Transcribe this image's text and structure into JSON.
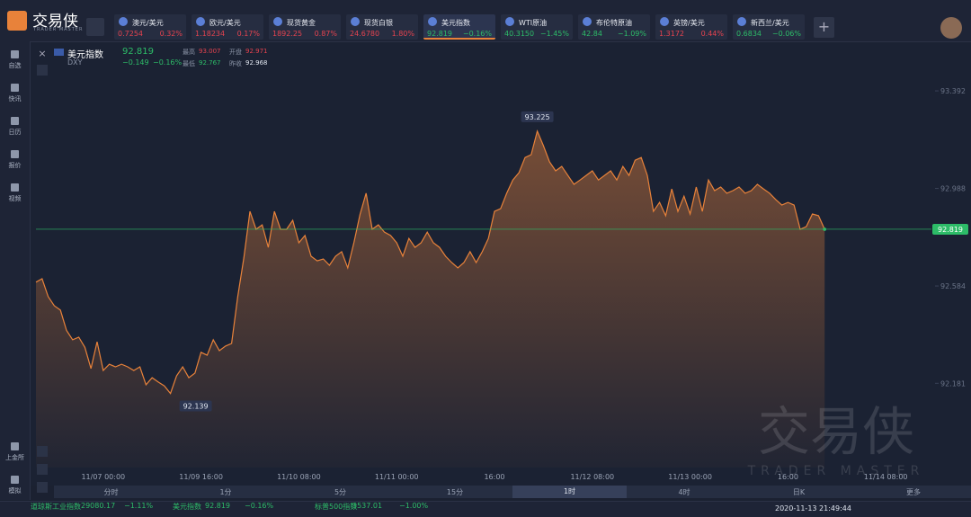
{
  "app": {
    "logo": "交易侠",
    "logo_sub": "TRADER MASTER",
    "watermark": "交易侠",
    "watermark_sub": "TRADER MASTER"
  },
  "tickers": [
    {
      "name": "澳元/美元",
      "price": "0.7254",
      "change": "0.32%"
    },
    {
      "name": "欧元/美元",
      "price": "1.18234",
      "change": "0.17%"
    },
    {
      "name": "现货黄金",
      "price": "1892.25",
      "change": "0.87%"
    },
    {
      "name": "现货白银",
      "price": "24.6780",
      "change": "1.80%"
    },
    {
      "name": "美元指数",
      "price": "92.819",
      "change": "−0.16%"
    },
    {
      "name": "WTI原油",
      "price": "40.3150",
      "change": "−1.45%"
    },
    {
      "name": "布伦特原油",
      "price": "42.84",
      "change": "−1.09%"
    },
    {
      "name": "英镑/美元",
      "price": "1.3172",
      "change": "0.44%"
    },
    {
      "name": "新西兰/美元",
      "price": "0.6834",
      "change": "−0.06%"
    }
  ],
  "sidebar": {
    "top": [
      "自选",
      "快讯",
      "日历",
      "报价",
      "视频"
    ],
    "bottom": [
      "上金所",
      "模拟"
    ]
  },
  "quote": {
    "name": "美元指数",
    "price": "92.819",
    "code": "DXY",
    "change": "−0.149",
    "change_pct": "−0.16%",
    "fields": [
      {
        "label": "最高",
        "value": "93.007"
      },
      {
        "label": "开盘",
        "value": "92.971"
      },
      {
        "label": "最低",
        "value": "92.767"
      },
      {
        "label": "昨收",
        "value": "92.968"
      }
    ]
  },
  "chart_data": {
    "type": "area",
    "color": "#e8823a",
    "last_color": "#2dbc68",
    "categories": [
      null,
      null,
      null,
      null,
      null,
      null,
      null,
      null,
      null,
      null,
      null,
      "11/07 00:00",
      null,
      null,
      null,
      null,
      null,
      null,
      null,
      null,
      null,
      null,
      null,
      null,
      null,
      null,
      null,
      "11/09 16:00",
      null,
      null,
      null,
      null,
      null,
      null,
      null,
      null,
      null,
      null,
      null,
      null,
      null,
      null,
      null,
      "11/10 08:00",
      null,
      null,
      null,
      null,
      null,
      null,
      null,
      null,
      null,
      null,
      null,
      null,
      null,
      null,
      null,
      "11/11 00:00",
      null,
      null,
      null,
      null,
      null,
      null,
      null,
      null,
      null,
      null,
      null,
      null,
      null,
      null,
      null,
      "16:00",
      null,
      null,
      null,
      null,
      null,
      null,
      null,
      null,
      null,
      null,
      null,
      null,
      null,
      null,
      null,
      "11/12 08:00",
      null,
      null,
      null,
      null,
      null,
      null,
      null,
      null,
      null,
      null,
      null,
      null,
      null,
      null,
      null,
      "11/13 00:00",
      null,
      null,
      null,
      null,
      null,
      null,
      null,
      null,
      null,
      null,
      null,
      null,
      null,
      null,
      null,
      "16:00",
      null,
      null,
      null,
      null,
      null,
      null,
      null,
      null,
      null,
      null,
      null,
      null,
      null,
      null,
      null,
      "11/14 08:00"
    ],
    "values": [
      92.6,
      92.614,
      92.54,
      92.502,
      92.484,
      92.4,
      92.361,
      92.372,
      92.33,
      92.242,
      92.353,
      92.234,
      92.26,
      92.249,
      92.26,
      92.249,
      92.234,
      92.249,
      92.175,
      92.204,
      92.186,
      92.17,
      92.139,
      92.212,
      92.249,
      92.204,
      92.223,
      92.309,
      92.297,
      92.361,
      92.316,
      92.335,
      92.346,
      92.539,
      92.7,
      92.893,
      92.819,
      92.837,
      92.744,
      92.893,
      92.819,
      92.819,
      92.856,
      92.763,
      92.793,
      92.707,
      92.688,
      92.696,
      92.67,
      92.707,
      92.726,
      92.659,
      92.763,
      92.88,
      92.968,
      92.819,
      92.837,
      92.807,
      92.793,
      92.763,
      92.707,
      92.781,
      92.744,
      92.763,
      92.807,
      92.763,
      92.744,
      92.707,
      92.681,
      92.659,
      92.681,
      92.726,
      92.681,
      92.726,
      92.781,
      92.893,
      92.904,
      92.968,
      93.023,
      93.053,
      93.116,
      93.128,
      93.225,
      93.165,
      93.098,
      93.061,
      93.079,
      93.042,
      93.005,
      93.023,
      93.042,
      93.061,
      93.023,
      93.042,
      93.061,
      93.023,
      93.079,
      93.042,
      93.105,
      93.116,
      93.042,
      92.893,
      92.93,
      92.875,
      92.986,
      92.893,
      92.956,
      92.882,
      92.994,
      92.893,
      93.023,
      92.979,
      92.994,
      92.968,
      92.979,
      92.994,
      92.968,
      92.979,
      93.005,
      92.986,
      92.968,
      92.942,
      92.919,
      92.93,
      92.919,
      92.819,
      92.83,
      92.882,
      92.875,
      92.819,
      null,
      null,
      null,
      null,
      null,
      null,
      null,
      null,
      null,
      null
    ],
    "ylim": [
      91.832,
      93.545
    ],
    "yticks": [
      92.181,
      92.584,
      92.988,
      93.392
    ]
  },
  "timeframes": {
    "items": [
      "分时",
      "1分",
      "5分",
      "15分",
      "1时",
      "4时",
      "日K",
      "更多"
    ],
    "selected": "1时"
  },
  "status_bar": {
    "indices": [
      {
        "name": "道琼斯工业指数",
        "price": "29080.17",
        "change": "−1.11%"
      },
      {
        "name": "美元指数",
        "price": "92.819",
        "change": "−0.16%"
      },
      {
        "name": "标普500指数",
        "price": "3537.01",
        "change": "−1.00%"
      }
    ],
    "datetime": "2020-11-13 21:49:44"
  }
}
